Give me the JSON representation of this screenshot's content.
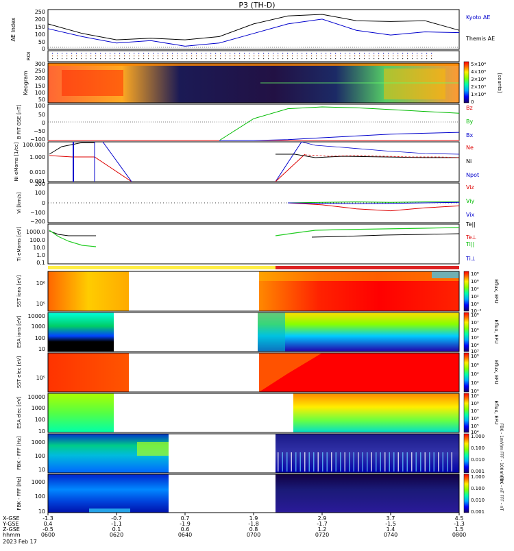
{
  "title": "P3 (TH-D)",
  "colors": {
    "kyoto": "#0000cc",
    "themis": "#000000",
    "bz": "#dd0000",
    "by": "#00bb00",
    "bx": "#0000cc",
    "ne": "#dd0000",
    "ni": "#000000",
    "npot": "#0000cc"
  },
  "panels": {
    "ae": {
      "ylabel": "AE Index",
      "ticks": [
        "250",
        "200",
        "150",
        "100",
        "50",
        "0"
      ],
      "legend": [
        "Kyoto AE",
        "Themis AE"
      ]
    },
    "roi": {
      "ylabel": "ROI"
    },
    "keogram": {
      "ylabel": "Keogram",
      "ticks": [
        "300",
        "250",
        "200",
        "150",
        "100",
        "50"
      ],
      "colorbar": [
        "5×10⁴",
        "4×10⁴",
        "3×10⁴",
        "2×10⁴",
        "1×10⁴",
        "0"
      ],
      "colorbar_label": "[counts]"
    },
    "bfield": {
      "ylabel": "B FIT GSE [nT]",
      "ticks": [
        "100",
        "50",
        "0",
        "−50",
        "−100"
      ],
      "legend": [
        "Bz",
        "By",
        "Bx"
      ]
    },
    "density": {
      "ylabel": "Ni eMoms [1/cc]",
      "ticks": [
        "100.000",
        "1.000",
        "0.010",
        "0.001"
      ],
      "legend": [
        "Ne",
        "Ni",
        "Npot"
      ]
    },
    "velocity": {
      "ylabel": "Vi [km/s]",
      "ticks": [
        "200",
        "100",
        "0",
        "−100",
        "−200"
      ],
      "legend": [
        "Viz",
        "Viy",
        "Vix"
      ]
    },
    "temperature": {
      "ylabel": "Ti eMoms [eV]",
      "ticks": [
        "1000.0",
        "100.0",
        "10.0",
        "1.0",
        "0.1"
      ],
      "legend": [
        "Te||",
        "Te⊥",
        "Ti||",
        "Ti⊥"
      ]
    },
    "spec_sst_ion": {
      "ylabel": "SST ions [eV]",
      "ticks": [
        "10⁶",
        "10⁵"
      ],
      "colorbar": [
        "10⁸",
        "10⁶",
        "10⁴",
        "10²",
        "10⁰",
        "10⁻²"
      ],
      "colorbar_label": "Eflux, EFU"
    },
    "spec_esa_ion": {
      "ylabel": "ESA ions [eV]",
      "ticks": [
        "10000",
        "1000",
        "100",
        "10"
      ],
      "colorbar": [
        "10⁸",
        "10⁷",
        "10⁶",
        "10⁵",
        "10⁴",
        "10³"
      ],
      "colorbar_label": "Eflux, EFU"
    },
    "spec_sst_elec": {
      "ylabel": "SST elec [eV]",
      "ticks": [
        "10⁵"
      ],
      "colorbar": [
        "10⁸",
        "10⁶",
        "10⁴",
        "10²",
        "10⁰"
      ],
      "colorbar_label": "Eflux, EFU"
    },
    "spec_esa_elec": {
      "ylabel": "ESA elec [eV]",
      "ticks": [
        "10000",
        "1000",
        "100",
        "10"
      ],
      "colorbar": [
        "10⁹",
        "10⁸",
        "10⁷",
        "10⁶",
        "10⁵",
        "10⁴"
      ],
      "colorbar_label": "Eflux, EFU"
    },
    "fbk_fff_e": {
      "ylabel": "FBK - FFF [Hz]",
      "ticks": [
        "1000",
        "100",
        "10"
      ],
      "colorbar": [
        "1.000",
        "0.100",
        "0.010",
        "0.001"
      ],
      "colorbar_label": "FBK - 1mV/m  FFF - 100mV/m"
    },
    "fbk_fff_b": {
      "ylabel": "FBK - FFF [Hz]",
      "ticks": [
        "1000",
        "100",
        "10"
      ],
      "colorbar": [
        "1.000",
        "0.100",
        "0.010",
        "0.001"
      ],
      "colorbar_label": "FBK - nT  FFF - nT"
    }
  },
  "xaxis": {
    "row_labels": [
      "X-GSE",
      "Y-GSE",
      "Z-GSE",
      "hhmm",
      "2023 Feb 17"
    ],
    "ticks": [
      {
        "x": "-1.3",
        "y": "0.4",
        "z": "-0.5",
        "t": "0600"
      },
      {
        "x": "-0.7",
        "y": "-1.1",
        "z": "0.1",
        "t": "0620"
      },
      {
        "x": "0.7",
        "y": "-1.9",
        "z": "0.6",
        "t": "0640"
      },
      {
        "x": "1.9",
        "y": "-1.8",
        "z": "0.8",
        "t": "0700"
      },
      {
        "x": "2.9",
        "y": "-1.7",
        "z": "1.2",
        "t": "0720"
      },
      {
        "x": "3.7",
        "y": "-1.5",
        "z": "1.4",
        "t": "0740"
      },
      {
        "x": "4.5",
        "y": "-1.3",
        "z": "1.5",
        "t": "0800"
      }
    ]
  },
  "chart_data": [
    {
      "type": "line",
      "name": "ae_index",
      "ylim": [
        0,
        250
      ],
      "x": [
        "06:00",
        "06:10",
        "06:20",
        "06:30",
        "06:40",
        "06:50",
        "07:00",
        "07:10",
        "07:20",
        "07:30",
        "07:40",
        "07:50",
        "08:00"
      ],
      "series": [
        {
          "name": "Kyoto AE",
          "values": [
            130,
            80,
            40,
            55,
            20,
            40,
            100,
            160,
            190,
            120,
            90,
            110,
            105
          ]
        },
        {
          "name": "Themis AE",
          "values": [
            160,
            100,
            60,
            70,
            60,
            80,
            160,
            210,
            220,
            180,
            175,
            180,
            120
          ]
        }
      ]
    },
    {
      "type": "line",
      "name": "b_field",
      "ylim": [
        -100,
        100
      ],
      "x": [
        "06:00",
        "06:10",
        "06:20",
        "06:30",
        "06:40",
        "06:50",
        "07:00",
        "07:10",
        "07:20",
        "07:30",
        "07:40",
        "07:50",
        "08:00"
      ],
      "series": [
        {
          "name": "Bz",
          "values": [
            -100,
            -100,
            -100,
            -100,
            -100,
            -100,
            -100,
            -100,
            -100,
            -100,
            -100,
            -100,
            -100
          ]
        },
        {
          "name": "By",
          "values": [
            null,
            null,
            null,
            null,
            null,
            -100,
            20,
            75,
            85,
            80,
            70,
            60,
            50
          ]
        },
        {
          "name": "Bx",
          "values": [
            null,
            null,
            null,
            null,
            null,
            -100,
            -100,
            -95,
            -85,
            -75,
            -65,
            -60,
            -55
          ]
        }
      ]
    },
    {
      "type": "line",
      "name": "velocity",
      "ylim": [
        -200,
        200
      ],
      "x": [
        "07:10",
        "07:20",
        "07:30",
        "07:40",
        "07:50",
        "08:00"
      ],
      "series": [
        {
          "name": "Viz",
          "values": [
            0,
            -20,
            -60,
            -80,
            -50,
            -30
          ]
        },
        {
          "name": "Viy",
          "values": [
            0,
            5,
            10,
            5,
            10,
            10
          ]
        },
        {
          "name": "Vix",
          "values": [
            0,
            -5,
            -10,
            -5,
            0,
            5
          ]
        }
      ]
    }
  ]
}
